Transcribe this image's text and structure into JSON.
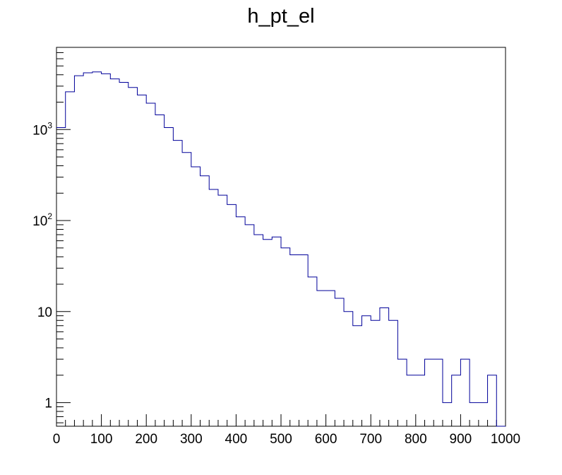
{
  "chart_data": {
    "type": "histogram",
    "title": "h_pt_el",
    "xlabel": "",
    "ylabel": "",
    "xlim": [
      0,
      1000
    ],
    "ylim": [
      0.55,
      8000
    ],
    "yscale": "log",
    "grid": false,
    "bin_width": 20,
    "bin_edges_start": 0,
    "line_color": "#000099",
    "x_tick_labels": [
      "0",
      "100",
      "200",
      "300",
      "400",
      "500",
      "600",
      "700",
      "800",
      "900",
      "1000"
    ],
    "x_tick_values": [
      0,
      100,
      200,
      300,
      400,
      500,
      600,
      700,
      800,
      900,
      1000
    ],
    "y_tick_labels": [
      {
        "value": 1,
        "base": "1",
        "exp": ""
      },
      {
        "value": 10,
        "base": "10",
        "exp": ""
      },
      {
        "value": 100,
        "base": "10",
        "exp": "2"
      },
      {
        "value": 1000,
        "base": "10",
        "exp": "3"
      }
    ],
    "values": [
      1050,
      2600,
      3900,
      4200,
      4300,
      4100,
      3600,
      3300,
      2900,
      2400,
      1950,
      1450,
      1050,
      760,
      560,
      390,
      310,
      220,
      190,
      150,
      110,
      90,
      70,
      62,
      66,
      50,
      42,
      42,
      24,
      17,
      17,
      14,
      10,
      7,
      9,
      8,
      11,
      8,
      3,
      2,
      2,
      3,
      3,
      1,
      2,
      3,
      1,
      1,
      2,
      0
    ]
  }
}
